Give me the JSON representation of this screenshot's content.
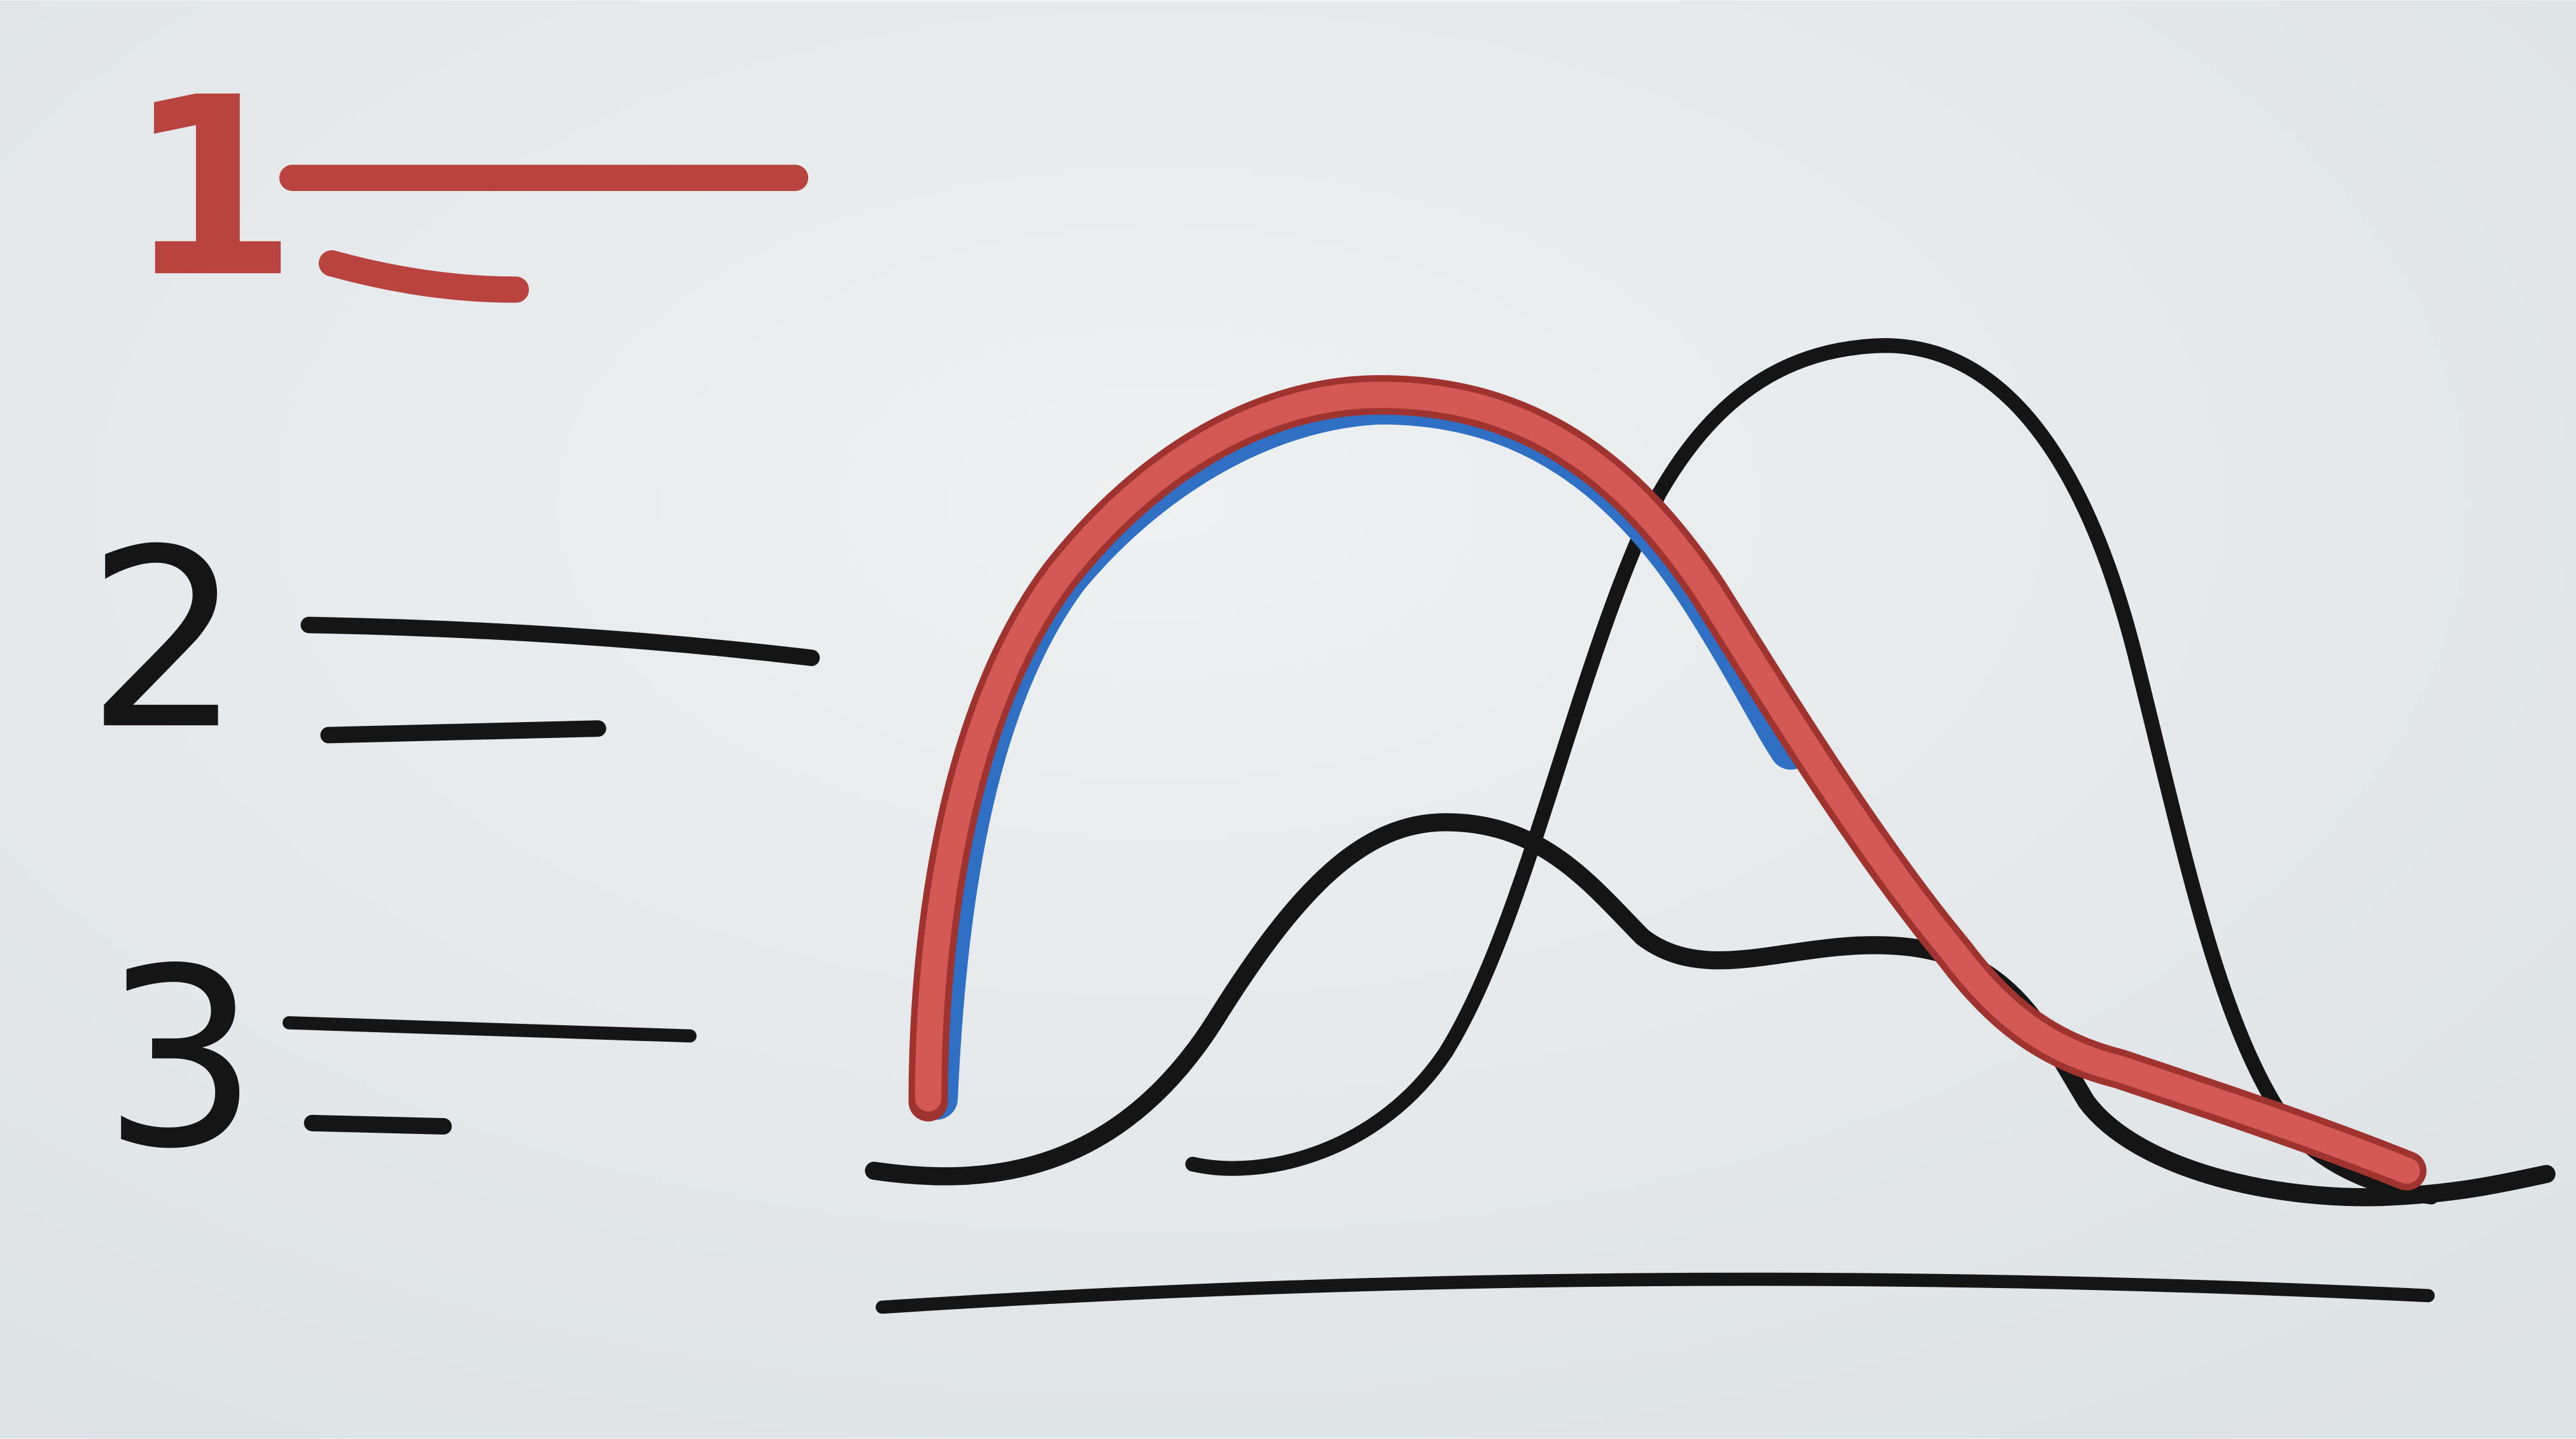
{
  "legend": {
    "items": [
      {
        "label": "1"
      },
      {
        "label": "2"
      },
      {
        "label": "3"
      }
    ]
  }
}
